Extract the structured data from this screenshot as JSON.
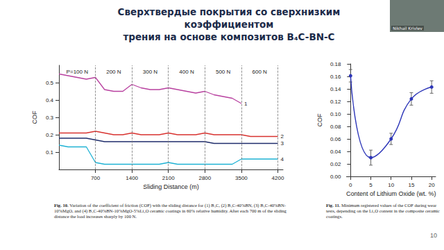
{
  "slide": {
    "title": [
      "Сверхтвердые покрытия со сверхнизким коэффициентом",
      "трения на основе композитов B₄C-BN-C"
    ],
    "page": "10",
    "speaker": "Nikhail Krivlev"
  },
  "chart_data": [
    {
      "type": "line",
      "caption": "Fig. 10. Variation of the coefficient of friction (COF) with the sliding distance for (1) B₄C, (2) B₄C-40%BN, (3) B₄C-40%BN-10%MgO, and (4) B₄C-40%BN-10%MgO-5%Li₂O ceramic coatings in 60% relative humidity. After each 700 m of the sliding distance the load increases sharply by 100 N.",
      "x_label": "Sliding Distance (m)",
      "y_label": "COF",
      "xlim": [
        0,
        4300
      ],
      "xticks": [
        700,
        1400,
        2100,
        2800,
        3500,
        4200
      ],
      "ylim": [
        0,
        0.6
      ],
      "yticks": [
        0.1,
        0.2,
        0.3,
        0.4,
        0.5
      ],
      "grid": false,
      "load_segments": [
        {
          "from": 0,
          "to": 700,
          "label": "P=100 N"
        },
        {
          "from": 700,
          "to": 1400,
          "label": "200 N"
        },
        {
          "from": 1400,
          "to": 2100,
          "label": "300 N"
        },
        {
          "from": 2100,
          "to": 2800,
          "label": "400 N"
        },
        {
          "from": 2800,
          "to": 3500,
          "label": "500 N"
        },
        {
          "from": 3500,
          "to": 4200,
          "label": "600 N"
        }
      ],
      "series": [
        {
          "name": "1",
          "color": "#b8409f",
          "x": [
            0,
            175,
            350,
            525,
            700,
            875,
            1050,
            1225,
            1400,
            1575,
            1750,
            1925,
            2100,
            2275,
            2450,
            2625,
            2800,
            2975,
            3150,
            3325,
            3500
          ],
          "values": [
            0.55,
            0.54,
            0.53,
            0.52,
            0.53,
            0.46,
            0.45,
            0.45,
            0.49,
            0.47,
            0.46,
            0.46,
            0.47,
            0.46,
            0.45,
            0.44,
            0.45,
            0.43,
            0.42,
            0.41,
            0.38
          ]
        },
        {
          "name": "2",
          "color": "#d8322f",
          "x": [
            0,
            175,
            350,
            525,
            700,
            875,
            1050,
            1225,
            1400,
            1575,
            1750,
            1925,
            2100,
            2275,
            2450,
            2625,
            2800,
            2975,
            3150,
            3325,
            3500,
            3675,
            3850,
            4025,
            4200
          ],
          "values": [
            0.21,
            0.21,
            0.21,
            0.21,
            0.22,
            0.21,
            0.2,
            0.2,
            0.21,
            0.2,
            0.2,
            0.2,
            0.21,
            0.2,
            0.2,
            0.2,
            0.21,
            0.2,
            0.2,
            0.2,
            0.2,
            0.19,
            0.19,
            0.19,
            0.19
          ]
        },
        {
          "name": "3",
          "color": "#1f2d6b",
          "x": [
            0,
            175,
            350,
            525,
            700,
            875,
            1050,
            1225,
            1400,
            1575,
            1750,
            1925,
            2100,
            2275,
            2450,
            2625,
            2800,
            2975,
            3150,
            3325,
            3500,
            3675,
            3850,
            4025,
            4200
          ],
          "values": [
            0.18,
            0.18,
            0.18,
            0.18,
            0.17,
            0.16,
            0.16,
            0.16,
            0.16,
            0.16,
            0.16,
            0.16,
            0.16,
            0.16,
            0.16,
            0.16,
            0.16,
            0.15,
            0.15,
            0.15,
            0.15,
            0.15,
            0.15,
            0.15,
            0.15
          ]
        },
        {
          "name": "4",
          "color": "#1eb2d4",
          "x": [
            0,
            175,
            350,
            525,
            700,
            875,
            1050,
            1225,
            1400,
            1575,
            1750,
            1925,
            2100,
            2275,
            2450,
            2625,
            2800,
            2975,
            3150,
            3325,
            3500,
            3675,
            3850,
            4025,
            4200
          ],
          "values": [
            0.14,
            0.13,
            0.13,
            0.13,
            0.04,
            0.03,
            0.03,
            0.03,
            0.03,
            0.03,
            0.03,
            0.03,
            0.04,
            0.03,
            0.03,
            0.03,
            0.03,
            0.03,
            0.03,
            0.03,
            0.06,
            0.06,
            0.06,
            0.06,
            0.06
          ]
        }
      ]
    },
    {
      "type": "line",
      "caption": "Fig. 11. Minimum registered values of the COF during wear tests, depending on the Li₂O content in the composite ceramic coatings.",
      "x_label": "Content of Lithium Oxide (wt. %)",
      "y_label": "COF",
      "xlim": [
        -1,
        21
      ],
      "xticks": [
        0,
        5,
        10,
        15,
        20
      ],
      "ylim": [
        0,
        0.18
      ],
      "yticks": [
        {
          "value": 0,
          "label": "0.00"
        },
        0.02,
        0.04,
        0.06,
        0.08,
        {
          "value": 0.1,
          "label": "0.10"
        },
        0.12,
        0.14,
        0.16,
        0.18
      ],
      "grid": false,
      "x": [
        0,
        5,
        10,
        15,
        20
      ],
      "values": [
        0.161,
        0.03,
        0.06,
        0.124,
        0.143
      ],
      "errors": [
        0.01,
        0.012,
        0.009,
        0.01,
        0.01
      ],
      "color": "#2d36b8",
      "marker": "circle",
      "line_style": "smooth"
    }
  ]
}
